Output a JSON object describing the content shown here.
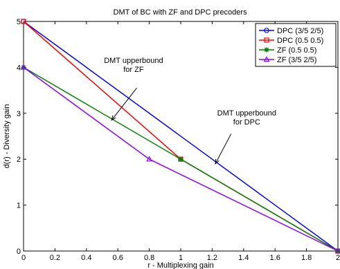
{
  "chart_data": {
    "type": "line",
    "title": "DMT of BC with ZF and DPC precoders",
    "xlabel": "r - Multiplexing gain",
    "ylabel": "d(r) - Diversity gain",
    "xlim": [
      0,
      2
    ],
    "ylim": [
      0,
      5
    ],
    "xticks": [
      "0",
      "0.2",
      "0.4",
      "0.6",
      "0.8",
      "1",
      "1.2",
      "1.4",
      "1.6",
      "1.8",
      "2"
    ],
    "yticks": [
      "0",
      "1",
      "2",
      "3",
      "4",
      "5"
    ],
    "grid": false,
    "legend_position": "top-right",
    "series": [
      {
        "name": "DPC (3/5 2/5)",
        "color": "#0000ff",
        "marker": "circle",
        "points": [
          [
            0,
            5
          ],
          [
            2,
            0
          ]
        ]
      },
      {
        "name": "DPC (0.5 0.5)",
        "color": "#ff0000",
        "marker": "square",
        "points": [
          [
            0,
            5
          ],
          [
            1,
            2
          ],
          [
            2,
            0
          ]
        ]
      },
      {
        "name": "ZF (0.5 0.5)",
        "color": "#008000",
        "marker": "star",
        "points": [
          [
            0,
            4
          ],
          [
            1,
            2
          ],
          [
            2,
            0
          ]
        ]
      },
      {
        "name": "ZF (3/5 2/5)",
        "color": "#8b00ff",
        "marker": "triangle",
        "points": [
          [
            0,
            4
          ],
          [
            0.8,
            2
          ],
          [
            2,
            0
          ]
        ]
      }
    ],
    "annotations": [
      {
        "lines": [
          "DMT upperbound",
          "for ZF"
        ],
        "text_at": [
          0.7,
          4.1
        ],
        "arrow_from": [
          0.72,
          3.55
        ],
        "arrow_to": [
          0.56,
          2.85
        ]
      },
      {
        "lines": [
          "DMT upperbound",
          "for DPC"
        ],
        "text_at": [
          1.42,
          2.95
        ],
        "arrow_from": [
          1.32,
          2.55
        ],
        "arrow_to": [
          1.22,
          1.9
        ]
      }
    ]
  }
}
